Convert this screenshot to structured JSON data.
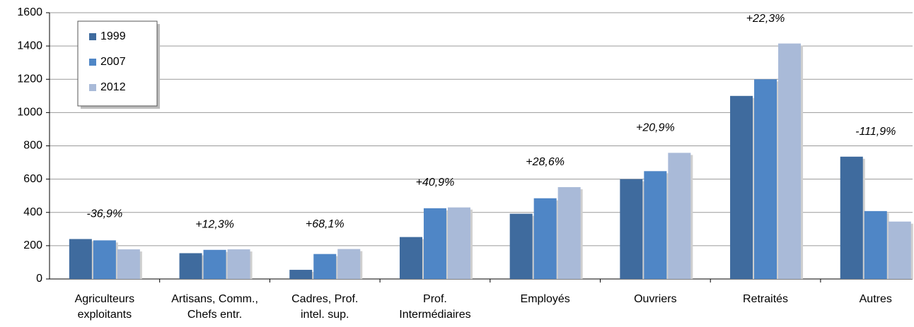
{
  "chart_data": {
    "type": "bar",
    "categories": [
      [
        "Agriculteurs",
        "exploitants"
      ],
      [
        "Artisans, Comm.,",
        "Chefs entr."
      ],
      [
        "Cadres, Prof.",
        "intel. sup."
      ],
      [
        "Prof.",
        "Intermédiaires"
      ],
      [
        "Employés"
      ],
      [
        "Ouvriers"
      ],
      [
        "Retraités"
      ],
      [
        "Autres"
      ]
    ],
    "series": [
      {
        "name": "1999",
        "color": "#3f6b9e",
        "values": [
          240,
          155,
          55,
          252,
          392,
          600,
          1100,
          735
        ]
      },
      {
        "name": "2007",
        "color": "#4f86c6",
        "values": [
          232,
          175,
          150,
          425,
          485,
          648,
          1200,
          408
        ]
      },
      {
        "name": "2012",
        "color": "#a9bad8",
        "values": [
          178,
          178,
          180,
          430,
          552,
          758,
          1415,
          345
        ]
      }
    ],
    "annotations": [
      "-36,9%",
      "+12,3%",
      "+68,1%",
      "+40,9%",
      "+28,6%",
      "+20,9%",
      "+22,3%",
      "-111,9%"
    ],
    "ylim": [
      0,
      1600
    ],
    "yticks": [
      0,
      200,
      400,
      600,
      800,
      1000,
      1200,
      1400,
      1600
    ],
    "grid": true,
    "legend": "upper left"
  }
}
